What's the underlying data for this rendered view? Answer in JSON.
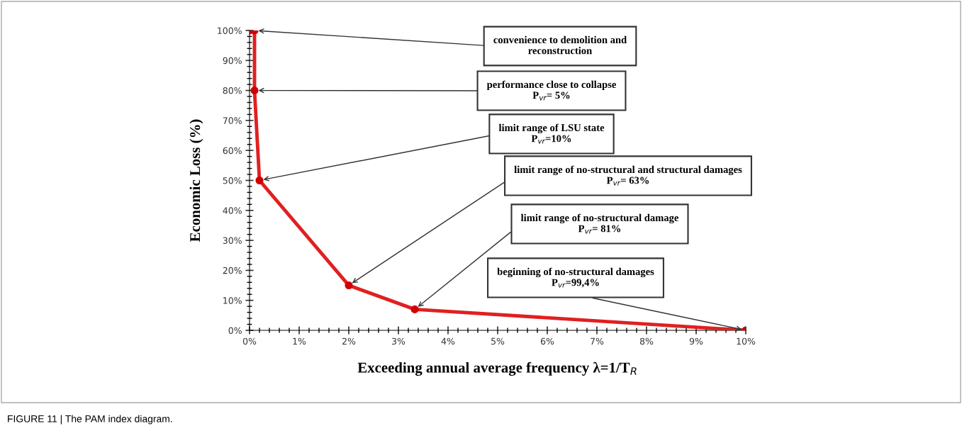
{
  "chart_data": {
    "type": "line",
    "xlabel": "Exceeding annual average frequency λ=1/T$_{R}$",
    "ylabel": "Economic Loss (%)",
    "x": [
      0,
      0.1,
      0.1,
      0.2,
      2,
      3.33,
      10
    ],
    "series": [
      {
        "color": "#e02020",
        "values": [
          100,
          100,
          80,
          50,
          15,
          7,
          0
        ]
      }
    ],
    "marker": "circle",
    "line_style": "solid",
    "grid": false,
    "legend": false,
    "xlim": [
      0,
      10
    ],
    "ylim": [
      0,
      100
    ],
    "xticks": [
      {
        "value": 0,
        "label": "0%"
      },
      {
        "value": 1,
        "label": "1%"
      },
      {
        "value": 2,
        "label": "2%"
      },
      {
        "value": 3,
        "label": "3%"
      },
      {
        "value": 4,
        "label": "4%"
      },
      {
        "value": 5,
        "label": "5%"
      },
      {
        "value": 6,
        "label": "6%"
      },
      {
        "value": 7,
        "label": "7%"
      },
      {
        "value": 8,
        "label": "8%"
      },
      {
        "value": 9,
        "label": "9%"
      },
      {
        "value": 10,
        "label": "10%"
      }
    ],
    "yticks": [
      {
        "value": 0,
        "label": "0%"
      },
      {
        "value": 10,
        "label": "10%"
      },
      {
        "value": 20,
        "label": "20%"
      },
      {
        "value": 30,
        "label": "30%"
      },
      {
        "value": 40,
        "label": "40%"
      },
      {
        "value": 50,
        "label": "50%"
      },
      {
        "value": 60,
        "label": "60%"
      },
      {
        "value": 70,
        "label": "70%"
      },
      {
        "value": 80,
        "label": "80%"
      },
      {
        "value": 90,
        "label": "90%"
      },
      {
        "value": 100,
        "label": "100%"
      }
    ],
    "annotations": [
      {
        "text": "convenience to demolition and\nreconstruction",
        "x": 0.1,
        "y": 100
      },
      {
        "text": "performance close to collapse\nP$_{vr}$= 5%",
        "x": 0.1,
        "y": 80
      },
      {
        "text": "limit range of LSU state\nP$_{vr}$=10%",
        "x": 0.2,
        "y": 50
      },
      {
        "text": "limit range of no-structural and structural damages\nP$_{vr}$= 63%",
        "x": 2,
        "y": 15
      },
      {
        "text": "limit range of no-structural damage\nP$_{vr}$= 81%",
        "x": 3.33,
        "y": 7
      },
      {
        "text": "beginning of no-structural damages\nP$_{vr}$=99,4%",
        "x": 10,
        "y": 0
      },
      "FIGURE 11 | The PAM index diagram."
    ]
  }
}
